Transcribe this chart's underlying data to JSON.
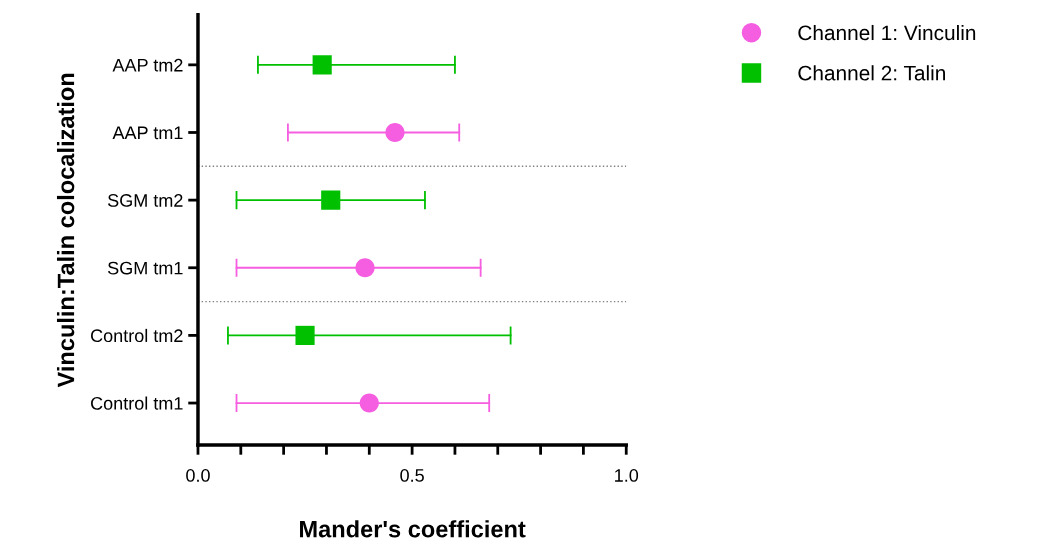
{
  "chart_data": {
    "type": "scatter",
    "orientation": "horizontal",
    "ylabel": "Vinculin:Talin colocalization",
    "xlabel": "Mander's coefficient",
    "categories": [
      "AAP tm2",
      "AAP tm1",
      "SGM tm2",
      "SGM tm1",
      "Control tm2",
      "Control tm1"
    ],
    "xlim": [
      0,
      1
    ],
    "xticks": [
      {
        "value": 0,
        "label": "0.0"
      },
      {
        "value": 0.1,
        "label": null
      },
      {
        "value": 0.2,
        "label": null
      },
      {
        "value": 0.3,
        "label": null
      },
      {
        "value": 0.4,
        "label": null
      },
      {
        "value": 0.5,
        "label": "0.5"
      },
      {
        "value": 0.6,
        "label": null
      },
      {
        "value": 0.7,
        "label": null
      },
      {
        "value": 0.8,
        "label": null
      },
      {
        "value": 0.9,
        "label": null
      },
      {
        "value": 1,
        "label": "1.0"
      }
    ],
    "series": [
      {
        "name": "Channel 1: Vinculin",
        "color": "#f55ee0",
        "marker": "circle",
        "values": [
          null,
          0.46,
          null,
          0.39,
          null,
          0.4
        ],
        "errors": [
          null,
          [
            0.21,
            0.61
          ],
          null,
          [
            0.09,
            0.66
          ],
          null,
          [
            0.09,
            0.68
          ]
        ]
      },
      {
        "name": "Channel 2: Talin",
        "color": "#00c000",
        "marker": "square",
        "values": [
          0.29,
          null,
          0.31,
          null,
          0.25,
          null
        ],
        "errors": [
          [
            0.14,
            0.6
          ],
          null,
          [
            0.09,
            0.53
          ],
          null,
          [
            0.07,
            0.73
          ],
          null
        ]
      }
    ],
    "grid": false,
    "legend": "top right"
  }
}
